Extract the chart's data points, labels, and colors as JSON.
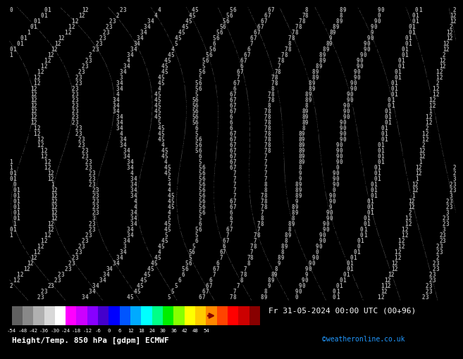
{
  "title_left": "Height/Temp. 850 hPa [gdpm] ECMWF",
  "title_right": "Fr 31-05-2024 00:00 UTC (00+96)",
  "credit": "©weatheronline.co.uk",
  "colorbar_values": [
    -54,
    -48,
    -42,
    -36,
    -30,
    -24,
    -18,
    -12,
    -6,
    0,
    6,
    12,
    18,
    24,
    30,
    36,
    42,
    48,
    54
  ],
  "bg_color": "#000000",
  "main_bg": "#f5c800",
  "figure_bg": "#000000",
  "n_rows": 52,
  "n_cols": 130,
  "fontsize": 5.5,
  "colorbar_colors": [
    "#606060",
    "#888888",
    "#b0b0b0",
    "#d8d8d8",
    "#ffffff",
    "#ff00ff",
    "#cc00ff",
    "#8800ff",
    "#4400cc",
    "#0000ff",
    "#0055ff",
    "#00aaff",
    "#00ffff",
    "#00ff88",
    "#00ee00",
    "#88ff00",
    "#ffff00",
    "#ffcc00",
    "#ff8800",
    "#ff4400",
    "#ff0000",
    "#cc0000",
    "#880000"
  ],
  "num_color_yellow": "#000000",
  "contour_line_color": "#888888"
}
